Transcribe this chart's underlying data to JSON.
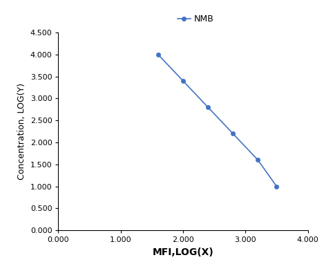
{
  "x": [
    1.6,
    2.0,
    2.4,
    2.8,
    3.2,
    3.5
  ],
  "y": [
    4.0,
    3.4,
    2.8,
    2.2,
    1.6,
    1.0
  ],
  "line_color": "#4472C4",
  "marker": "o",
  "marker_size": 4,
  "legend_label": "NMB",
  "xlabel": "MFI,LOG(X)",
  "ylabel": "Concentration, LOG(Y)",
  "xlim": [
    0.0,
    4.0
  ],
  "ylim": [
    0.0,
    4.5
  ],
  "xticks": [
    0.0,
    1.0,
    2.0,
    3.0,
    4.0
  ],
  "yticks": [
    0.0,
    0.5,
    1.0,
    1.5,
    2.0,
    2.5,
    3.0,
    3.5,
    4.0,
    4.5
  ],
  "xlabel_fontsize": 10,
  "ylabel_fontsize": 9,
  "legend_fontsize": 9,
  "tick_fontsize": 8,
  "background_color": "#ffffff"
}
